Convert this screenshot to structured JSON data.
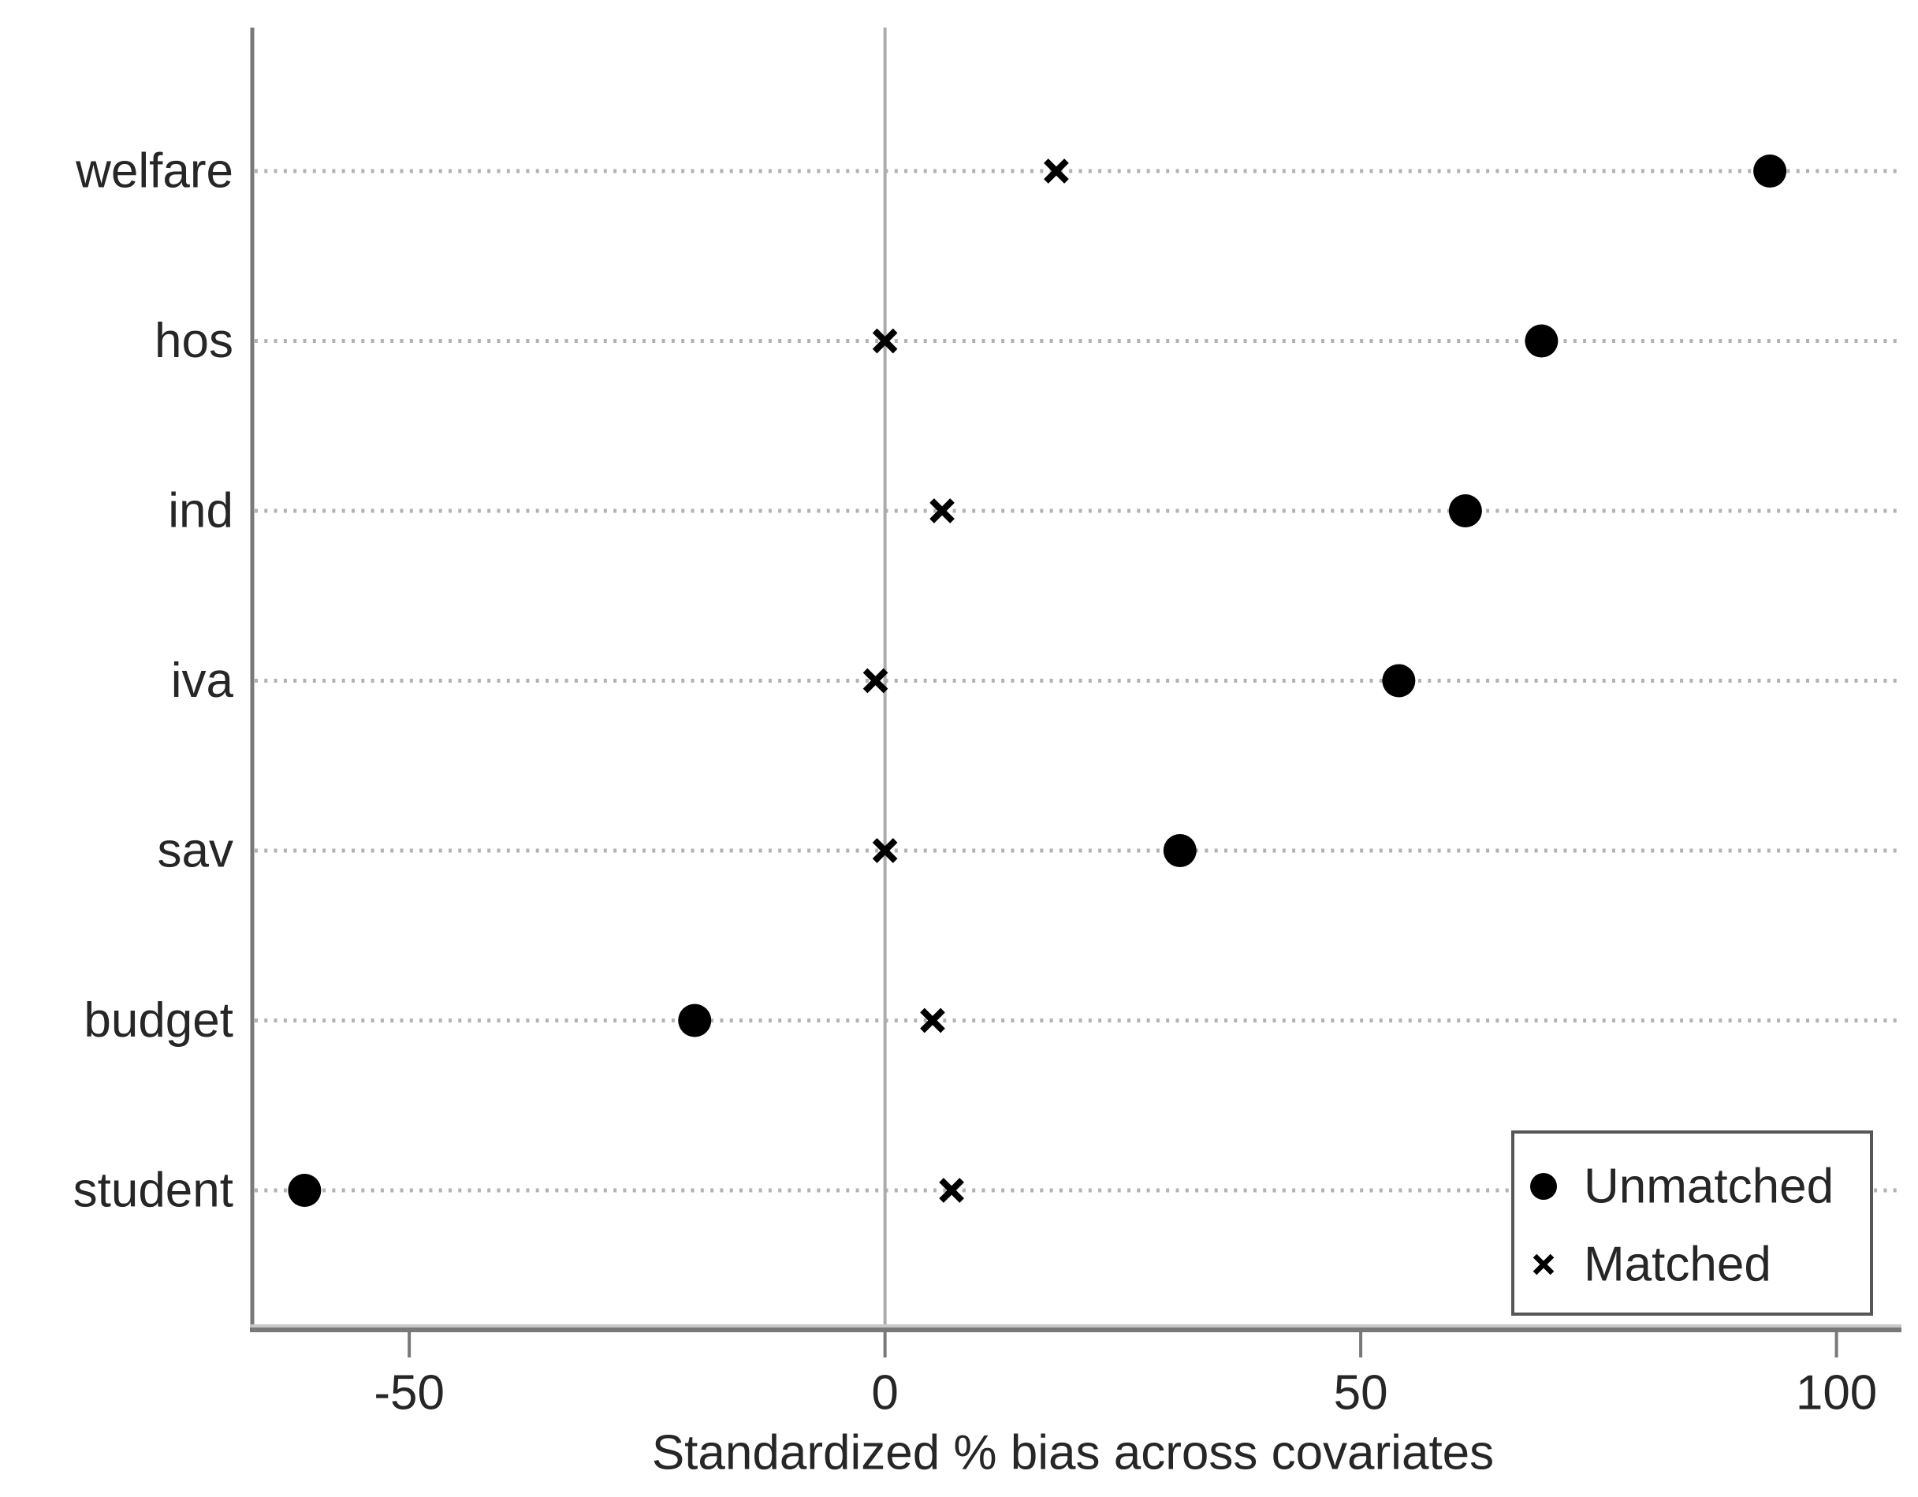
{
  "chart_data": {
    "type": "scatter",
    "variant": "horizontal-dot-plot",
    "xlabel": "Standardized % bias across covariates",
    "categories": [
      "welfare",
      "hos",
      "ind",
      "iva",
      "sav",
      "budget",
      "student"
    ],
    "series": [
      {
        "name": "Unmatched",
        "marker": "circle",
        "values": [
          93,
          69,
          61,
          54,
          31,
          -20,
          -61
        ]
      },
      {
        "name": "Matched",
        "marker": "x",
        "values": [
          18,
          0,
          6,
          -1,
          0,
          5,
          7
        ]
      }
    ],
    "xticks": [
      -50,
      0,
      50,
      100
    ],
    "xtick_labels": [
      "-50",
      "0",
      "50",
      "100"
    ],
    "xlim": [
      -66.5,
      106
    ],
    "grid": "horizontal-dotted",
    "zero_reference_line": true,
    "legend": {
      "position": "bottom-right",
      "entries": [
        {
          "marker": "circle",
          "label": "Unmatched"
        },
        {
          "marker": "x",
          "label": "Matched"
        }
      ]
    },
    "colors": {
      "background": "#ffffff",
      "marker": "#000000",
      "axis": "#787878",
      "axis_highlight": "#c8c8c8",
      "zero_line": "#ababab",
      "grid_dots": "#b2b2b2",
      "text": "#262626",
      "legend_border": "#565656"
    }
  }
}
